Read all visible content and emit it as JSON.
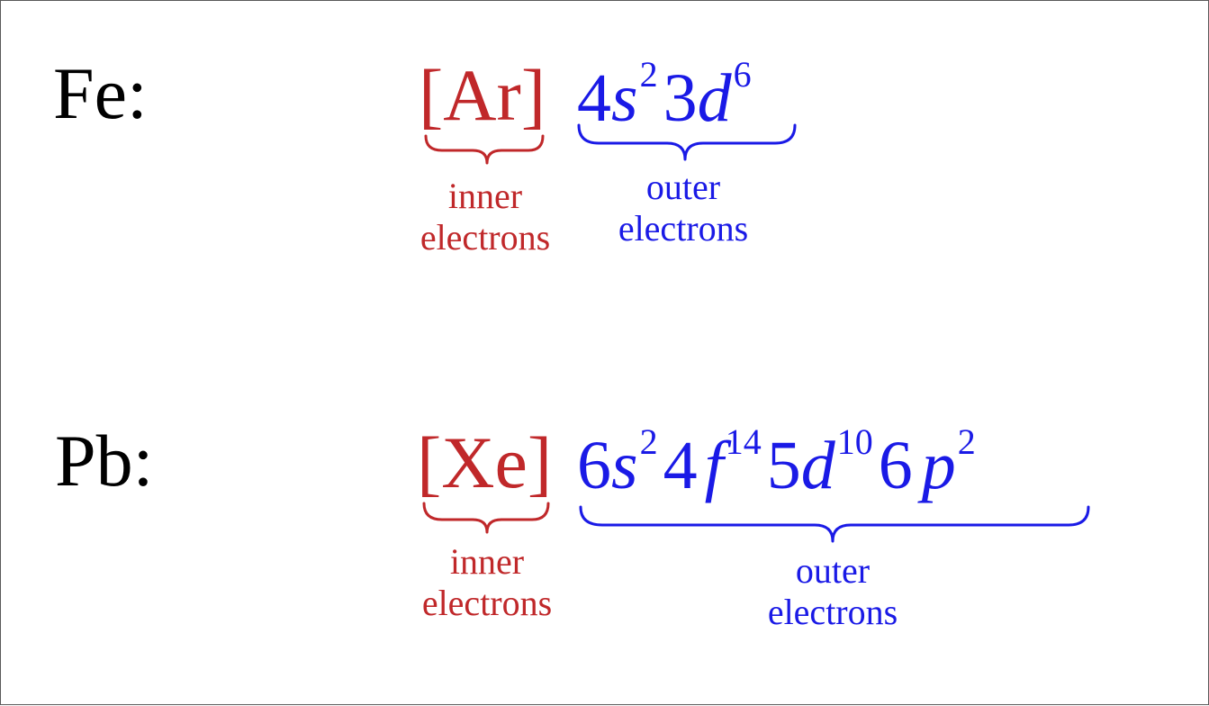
{
  "colors": {
    "inner": "#c0282a",
    "outer": "#1a1ae6",
    "symbol": "#000000",
    "border": "#5a5a5a"
  },
  "rows": [
    {
      "element": "Fe:",
      "core": "[Ar]",
      "orbitals": [
        {
          "n": "4",
          "l": "s",
          "e": "2"
        },
        {
          "n": "3",
          "l": "d",
          "e": "6"
        }
      ],
      "inner_label": {
        "line1": "inner",
        "line2": "electrons"
      },
      "outer_label": {
        "line1": "outer",
        "line2": "electrons"
      }
    },
    {
      "element": "Pb:",
      "core": "[Xe]",
      "orbitals": [
        {
          "n": "6",
          "l": "s",
          "e": "2"
        },
        {
          "n": "4",
          "l": "f",
          "e": "14"
        },
        {
          "n": "5",
          "l": "d",
          "e": "10"
        },
        {
          "n": "6",
          "l": "p",
          "e": "2"
        }
      ],
      "inner_label": {
        "line1": "inner",
        "line2": "electrons"
      },
      "outer_label": {
        "line1": "outer",
        "line2": "electrons"
      }
    }
  ]
}
